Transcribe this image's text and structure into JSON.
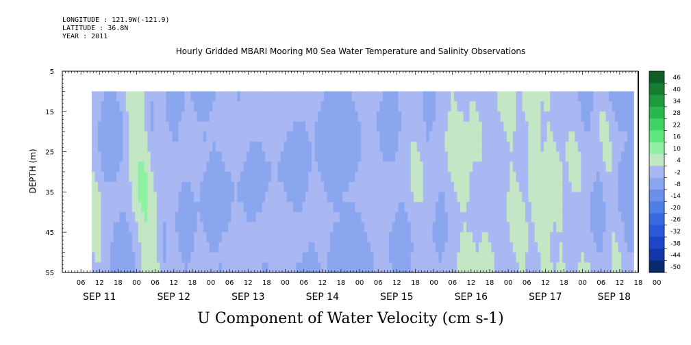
{
  "meta": {
    "longitude": "LONGITUDE : 121.9W(-121.9)",
    "latitude": "LATITUDE : 36.8N",
    "year": "YEAR : 2011"
  },
  "chart_data": {
    "type": "heatmap",
    "title": "Hourly Gridded MBARI Mooring M0 Sea Water Temperature and Salinity Observations",
    "xlabel": "U Component of Water Velocity (cm s-1)",
    "ylabel": "DEPTH (m)",
    "ylim": [
      5,
      55
    ],
    "y_ticks": [
      5,
      15,
      25,
      35,
      45,
      55
    ],
    "data_depth_range": [
      10,
      55
    ],
    "hour_ticks": [
      "06",
      "12",
      "18",
      "00",
      "06",
      "12",
      "18",
      "00",
      "06",
      "12",
      "18",
      "00",
      "06",
      "12",
      "18",
      "00",
      "06",
      "12",
      "18",
      "00",
      "06",
      "12",
      "18",
      "00",
      "06",
      "12",
      "18",
      "00",
      "06",
      "12",
      "18",
      "00"
    ],
    "date_labels": [
      "SEP 11",
      "SEP 12",
      "SEP 13",
      "SEP 14",
      "SEP 15",
      "SEP 16",
      "SEP 17",
      "SEP 18"
    ],
    "colorbar": {
      "levels": [
        -50,
        -44,
        -38,
        -32,
        -26,
        -20,
        -14,
        -8,
        -2,
        4,
        10,
        16,
        22,
        28,
        34,
        40,
        46
      ],
      "labels": [
        "46",
        "40",
        "34",
        "28",
        "22",
        "16",
        "10",
        "4",
        "-2",
        "-8",
        "-14",
        "-20",
        "-26",
        "-32",
        "-38",
        "-44",
        "-50"
      ],
      "colors": [
        "#0a2a6e",
        "#1535a8",
        "#1f46c8",
        "#2a58d8",
        "#3a6ae0",
        "#4f7de6",
        "#6a90ea",
        "#8aa6ee",
        "#a9b7f2",
        "#c3e6c4",
        "#8ff0a2",
        "#5fe57e",
        "#3dd463",
        "#28b84d",
        "#1d9a3e",
        "#157c32",
        "#0f5f27"
      ]
    },
    "band_center_hours": [
      8,
      25,
      33,
      42,
      55,
      68,
      81,
      100,
      114,
      128,
      134,
      139,
      145,
      153,
      158,
      165,
      176
    ],
    "band_widths_hours": [
      3,
      3,
      2,
      2,
      3,
      4,
      2,
      3,
      3,
      4,
      3,
      3,
      3,
      3,
      3,
      3,
      2
    ],
    "band_peak_values": [
      10,
      14,
      6,
      4,
      4,
      4,
      4,
      6,
      8,
      10,
      8,
      6,
      10,
      12,
      10,
      8,
      8
    ],
    "background_value": -14
  }
}
